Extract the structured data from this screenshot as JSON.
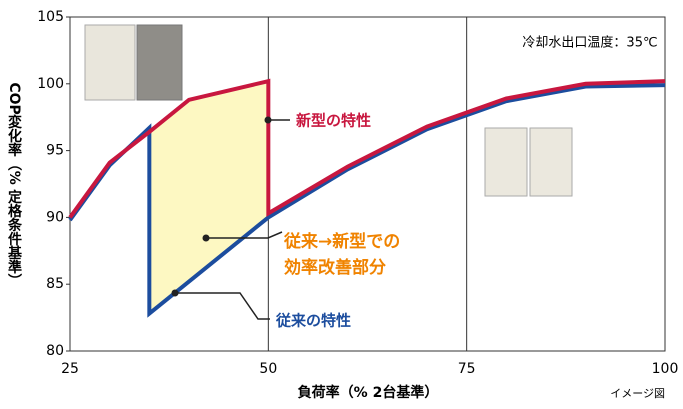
{
  "chart_data": {
    "type": "line",
    "x_label": "負荷率（% 2台基準）",
    "y_label": "COP変化率（% 定格条件基準）",
    "xlim": [
      25,
      100
    ],
    "xticks": [
      25,
      50,
      75,
      100
    ],
    "ylim": [
      80,
      105
    ],
    "yticks": [
      80,
      85,
      90,
      95,
      100,
      105
    ],
    "grid": "x",
    "series": [
      {
        "name": "新型の特性",
        "color": "#c8173f",
        "x": [
          25,
          30,
          35,
          40,
          50,
          50,
          60,
          70,
          80,
          90,
          100
        ],
        "values": [
          90,
          94.1,
          96.4,
          98.8,
          100.2,
          90.3,
          93.8,
          96.8,
          98.9,
          100,
          100.2
        ]
      },
      {
        "name": "従来の特性",
        "color": "#1c4d9e",
        "x": [
          25,
          30,
          35,
          35,
          50,
          60,
          70,
          80,
          90,
          100
        ],
        "values": [
          89.8,
          93.9,
          96.7,
          82.8,
          90,
          93.6,
          96.6,
          98.7,
          99.8,
          99.9
        ]
      }
    ],
    "improvement": {
      "lines": [
        "従来→新型での",
        "効率改善部分"
      ],
      "color": "#f08300",
      "fill": "#fdf8c2"
    },
    "condition": "冷却水出口温度：35℃",
    "note": "イメージ図"
  }
}
